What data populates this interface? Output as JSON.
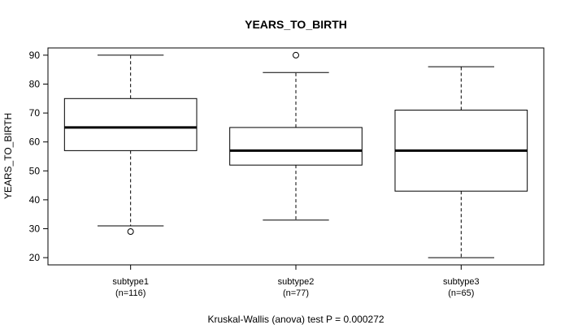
{
  "chart_data": {
    "type": "boxplot",
    "title": "YEARS_TO_BIRTH",
    "ylabel": "YEARS_TO_BIRTH",
    "xlabel": "",
    "ylim": [
      17.5,
      92.5
    ],
    "yticks": [
      20,
      30,
      40,
      50,
      60,
      70,
      80,
      90
    ],
    "footnote": "Kruskal-Wallis (anova) test P = 0.000272",
    "groups": [
      {
        "label": "subtype1",
        "n_label": "(n=116)",
        "whisker_low": 31,
        "q1": 57,
        "median": 65,
        "q3": 75,
        "whisker_high": 90,
        "outliers": [
          29
        ]
      },
      {
        "label": "subtype2",
        "n_label": "(n=77)",
        "whisker_low": 33,
        "q1": 52,
        "median": 57,
        "q3": 65,
        "whisker_high": 84,
        "outliers": [
          90
        ]
      },
      {
        "label": "subtype3",
        "n_label": "(n=65)",
        "whisker_low": 20,
        "q1": 43,
        "median": 57,
        "q3": 71,
        "whisker_high": 86,
        "outliers": []
      }
    ]
  }
}
